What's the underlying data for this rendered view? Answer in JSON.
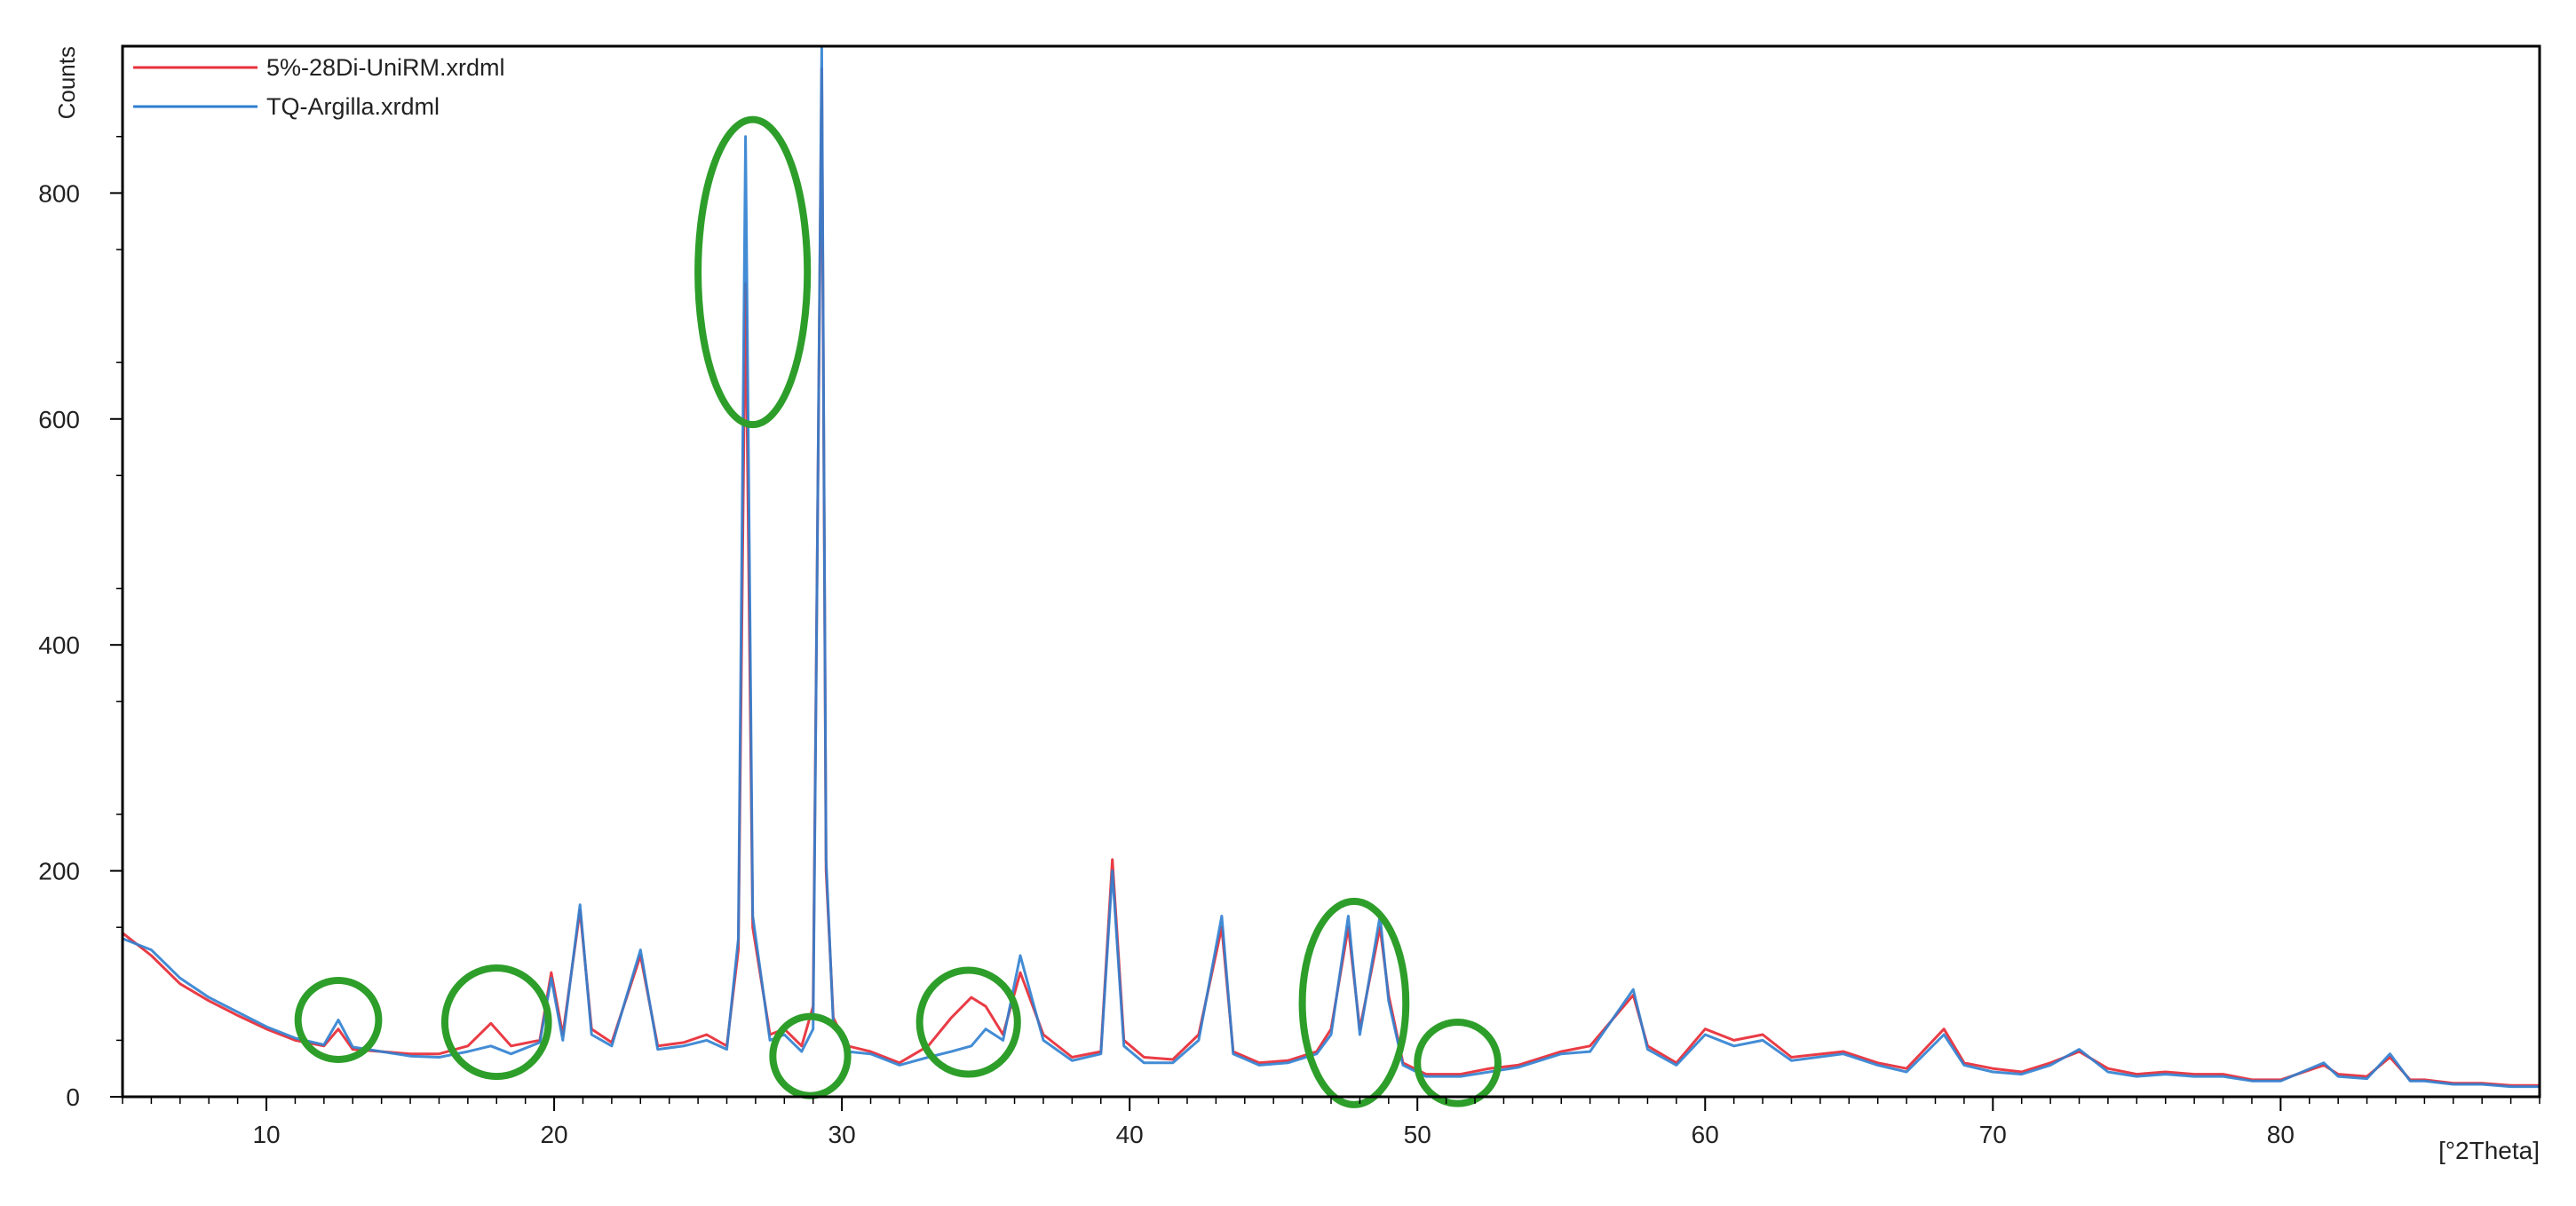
{
  "chart_data": {
    "type": "line",
    "title": "",
    "xlabel": "[°2Theta]",
    "ylabel": "Counts",
    "xlim": [
      5,
      89
    ],
    "ylim": [
      0,
      930
    ],
    "x_ticks": [
      10,
      20,
      30,
      40,
      50,
      60,
      70,
      80
    ],
    "y_ticks": [
      0,
      200,
      400,
      600,
      800
    ],
    "grid": false,
    "legend_position": "top-left",
    "series": [
      {
        "name": "5%-28Di-UniRM.xrdml",
        "color": "#e8323c",
        "x": [
          5,
          6,
          7,
          8,
          9,
          10,
          11,
          12,
          12.5,
          13,
          14,
          15,
          16,
          17,
          17.8,
          18.5,
          19.5,
          19.9,
          20.3,
          20.9,
          21.3,
          22,
          23,
          23.6,
          24.5,
          25.3,
          26.0,
          26.4,
          26.65,
          26.9,
          27.5,
          28,
          28.6,
          29.0,
          29.3,
          29.45,
          29.7,
          30.2,
          31,
          32,
          33,
          33.8,
          34.5,
          35.0,
          35.6,
          36.2,
          37,
          38,
          39.0,
          39.4,
          39.8,
          40.5,
          41.5,
          42.4,
          43.2,
          43.6,
          44.5,
          45.5,
          46.5,
          47.0,
          47.6,
          48.0,
          48.7,
          49.0,
          49.5,
          50.3,
          51.5,
          52.5,
          53.5,
          55,
          56,
          57.5,
          58,
          59,
          60,
          61,
          62,
          63,
          64.8,
          66,
          67,
          68.3,
          69,
          70,
          71,
          72,
          73,
          74,
          75,
          76,
          77,
          78,
          79,
          80,
          81.5,
          82,
          83,
          83.8,
          84.5,
          85,
          86,
          87,
          88,
          89
        ],
        "y": [
          145,
          125,
          100,
          85,
          72,
          60,
          50,
          45,
          60,
          42,
          40,
          38,
          38,
          45,
          65,
          45,
          50,
          110,
          55,
          165,
          60,
          48,
          125,
          45,
          48,
          55,
          45,
          130,
          720,
          150,
          55,
          60,
          45,
          80,
          910,
          200,
          70,
          45,
          40,
          30,
          45,
          70,
          88,
          80,
          55,
          110,
          55,
          35,
          40,
          210,
          50,
          35,
          33,
          55,
          150,
          40,
          30,
          32,
          40,
          60,
          150,
          60,
          150,
          90,
          30,
          20,
          20,
          25,
          28,
          40,
          45,
          90,
          45,
          30,
          60,
          50,
          55,
          35,
          40,
          30,
          25,
          60,
          30,
          25,
          22,
          30,
          40,
          25,
          20,
          22,
          20,
          20,
          15,
          15,
          28,
          20,
          18,
          35,
          15,
          15,
          12,
          12,
          10,
          10
        ]
      },
      {
        "name": "TQ-Argilla.xrdml",
        "color": "#2f7fd0",
        "x": [
          5,
          6,
          7,
          8,
          9,
          10,
          11,
          12,
          12.5,
          13,
          14,
          15,
          16,
          17,
          17.8,
          18.5,
          19.5,
          19.9,
          20.3,
          20.9,
          21.3,
          22,
          23,
          23.6,
          24.5,
          25.3,
          26.0,
          26.4,
          26.65,
          26.9,
          27.5,
          28,
          28.6,
          29.0,
          29.3,
          29.45,
          29.7,
          30.2,
          31,
          32,
          33,
          33.8,
          34.5,
          35.0,
          35.6,
          36.2,
          37,
          38,
          39.0,
          39.4,
          39.8,
          40.5,
          41.5,
          42.4,
          43.2,
          43.6,
          44.5,
          45.5,
          46.5,
          47.0,
          47.6,
          48.0,
          48.7,
          49.0,
          49.5,
          50.3,
          51.5,
          52.5,
          53.5,
          55,
          56,
          57.5,
          58,
          59,
          60,
          61,
          62,
          63,
          64.8,
          66,
          67,
          68.3,
          69,
          70,
          71,
          72,
          73,
          74,
          75,
          76,
          77,
          78,
          79,
          80,
          81.5,
          82,
          83,
          83.8,
          84.5,
          85,
          86,
          87,
          88,
          89
        ],
        "y": [
          140,
          130,
          105,
          88,
          75,
          62,
          52,
          46,
          68,
          44,
          40,
          36,
          35,
          40,
          45,
          38,
          48,
          105,
          50,
          170,
          55,
          45,
          130,
          42,
          45,
          50,
          42,
          140,
          850,
          160,
          50,
          55,
          40,
          60,
          930,
          210,
          65,
          40,
          38,
          28,
          35,
          40,
          45,
          60,
          50,
          125,
          50,
          32,
          38,
          200,
          45,
          30,
          30,
          50,
          160,
          38,
          28,
          30,
          38,
          55,
          160,
          55,
          160,
          85,
          28,
          18,
          18,
          22,
          26,
          38,
          40,
          95,
          42,
          28,
          55,
          45,
          50,
          32,
          38,
          28,
          22,
          55,
          28,
          22,
          20,
          28,
          42,
          22,
          18,
          20,
          18,
          18,
          14,
          14,
          30,
          18,
          16,
          38,
          14,
          14,
          11,
          11,
          9,
          9
        ]
      }
    ],
    "annotations": [
      {
        "shape": "ellipse",
        "color": "#2e9e2a",
        "cx": 12.5,
        "cy": 68,
        "rx": 1.4,
        "ry": 35
      },
      {
        "shape": "ellipse",
        "color": "#2e9e2a",
        "cx": 18.0,
        "cy": 66,
        "rx": 1.8,
        "ry": 48
      },
      {
        "shape": "ellipse",
        "color": "#2e9e2a",
        "cx": 26.9,
        "cy": 730,
        "rx": 1.9,
        "ry": 135
      },
      {
        "shape": "ellipse",
        "color": "#2e9e2a",
        "cx": 28.9,
        "cy": 36,
        "rx": 1.3,
        "ry": 35
      },
      {
        "shape": "ellipse",
        "color": "#2e9e2a",
        "cx": 34.4,
        "cy": 66,
        "rx": 1.7,
        "ry": 46
      },
      {
        "shape": "ellipse",
        "color": "#2e9e2a",
        "cx": 47.8,
        "cy": 83,
        "rx": 1.8,
        "ry": 90
      },
      {
        "shape": "ellipse",
        "color": "#2e9e2a",
        "cx": 51.4,
        "cy": 30,
        "rx": 1.4,
        "ry": 36
      }
    ]
  }
}
